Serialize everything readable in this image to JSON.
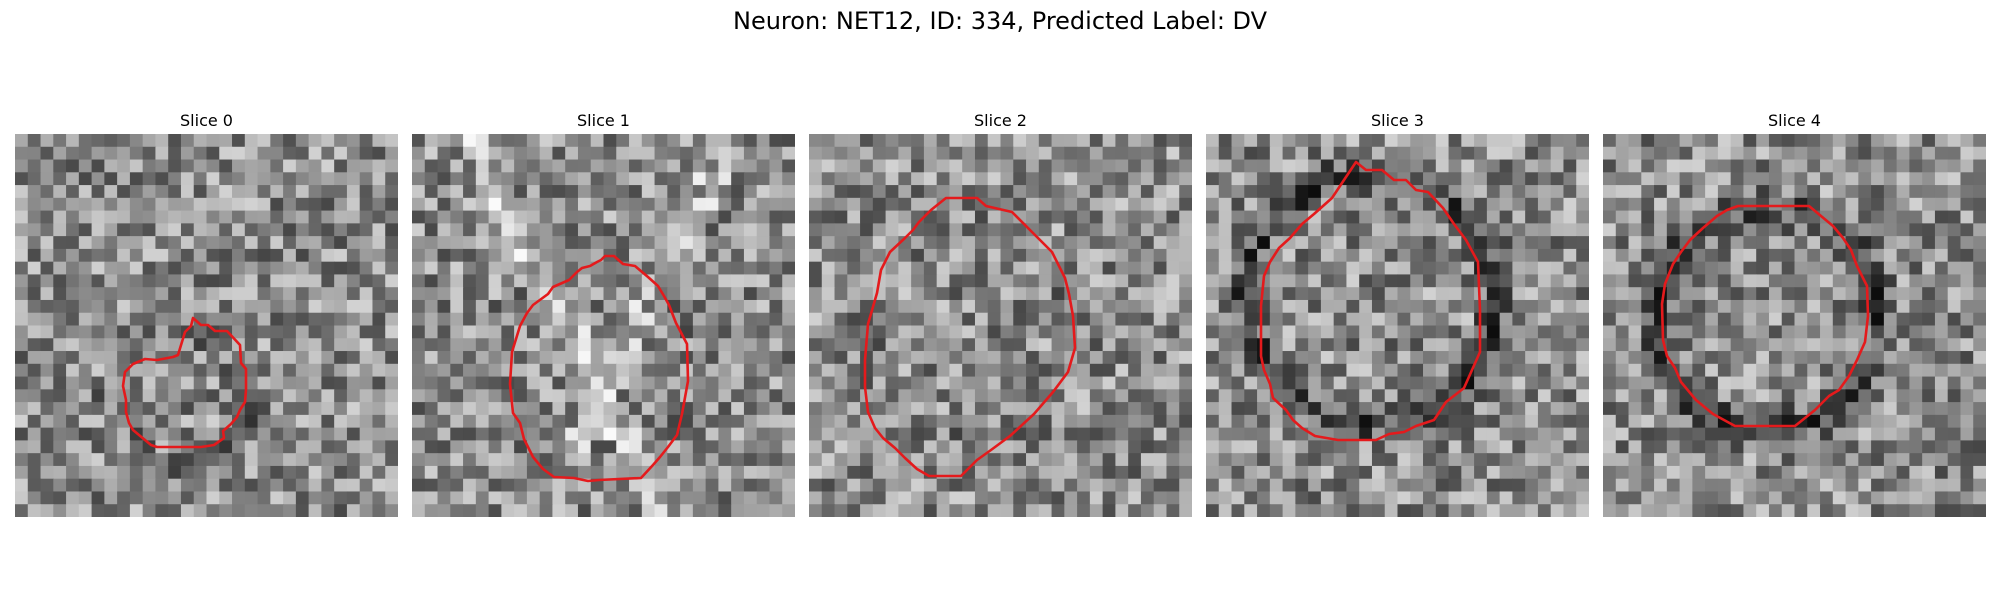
{
  "figure": {
    "title": "Neuron: NET12, ID: 334, Predicted Label: DV"
  },
  "panels": [
    {
      "title": "Slice 0"
    },
    {
      "title": "Slice 1"
    },
    {
      "title": "Slice 2"
    },
    {
      "title": "Slice 3"
    },
    {
      "title": "Slice 4"
    }
  ],
  "colors": {
    "contour": "#e41a1c",
    "background": "#ffffff"
  }
}
